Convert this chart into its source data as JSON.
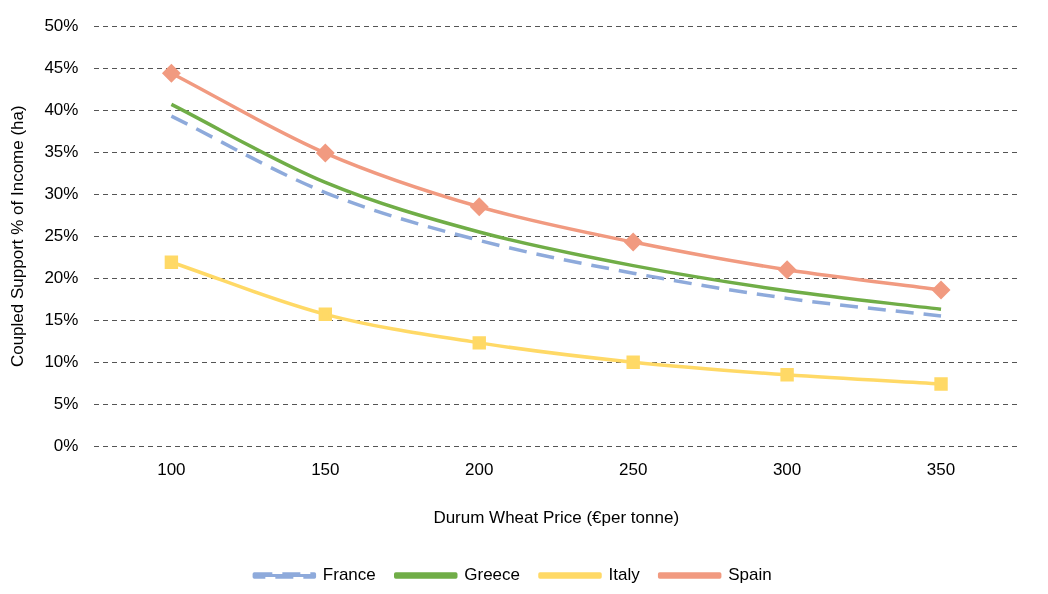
{
  "chart_data": {
    "type": "line",
    "xlabel": "Durum Wheat Price (€per tonne)",
    "ylabel": "Coupled Support % of Income (ha)",
    "categories": [
      "100",
      "150",
      "200",
      "250",
      "300",
      "350"
    ],
    "ylim": [
      0,
      50
    ],
    "yticks": [
      {
        "value": 0,
        "label": "0%"
      },
      {
        "value": 5,
        "label": "5%"
      },
      {
        "value": 10,
        "label": "10%"
      },
      {
        "value": 15,
        "label": "15%"
      },
      {
        "value": 20,
        "label": "20%"
      },
      {
        "value": 25,
        "label": "25%"
      },
      {
        "value": 30,
        "label": "30%"
      },
      {
        "value": 35,
        "label": "35%"
      },
      {
        "value": 40,
        "label": "40%"
      },
      {
        "value": 45,
        "label": "45%"
      },
      {
        "value": 50,
        "label": "50%"
      }
    ],
    "grid": "y",
    "legend": "bottom",
    "series": [
      {
        "name": "France",
        "color": "#8eaadb",
        "line_style": "dashed",
        "marker": "none",
        "values": [
          39.3,
          30.2,
          24.5,
          20.6,
          17.6,
          15.5
        ]
      },
      {
        "name": "Greece",
        "color": "#70ad47",
        "line_style": "solid",
        "marker": "none",
        "values": [
          40.7,
          31.4,
          25.5,
          21.5,
          18.5,
          16.3
        ]
      },
      {
        "name": "Italy",
        "color": "#ffd966",
        "line_style": "solid",
        "marker": "square",
        "values": [
          21.9,
          15.7,
          12.3,
          10.0,
          8.5,
          7.4
        ]
      },
      {
        "name": "Spain",
        "color": "#f19a80",
        "line_style": "solid",
        "marker": "diamond",
        "values": [
          44.4,
          34.9,
          28.5,
          24.3,
          21.0,
          18.6
        ]
      }
    ]
  }
}
